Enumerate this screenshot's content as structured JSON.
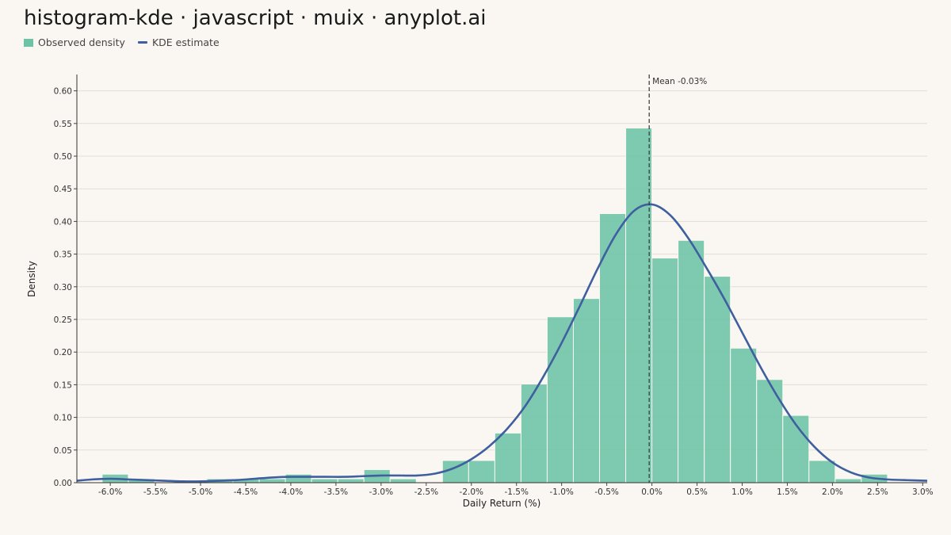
{
  "title": "histogram-kde · javascript · muix · anyplot.ai",
  "colors": {
    "bars": "#6cc4a6",
    "kde": "#3f5f9f",
    "background": "#faf7f2",
    "grid": "#e2ddd5"
  },
  "legend": [
    {
      "label": "Observed density",
      "kind": "bar"
    },
    {
      "label": "KDE estimate",
      "kind": "line"
    }
  ],
  "chart_data": {
    "type": "bar",
    "xlabel": "Daily Return (%)",
    "ylabel": "Density",
    "xlim": [
      -6.37,
      3.05
    ],
    "ylim": [
      0,
      0.625
    ],
    "grid": true,
    "legend_position": "top-left",
    "x_ticks": [
      -6.0,
      -5.5,
      -5.0,
      -4.5,
      -4.0,
      -3.5,
      -3.0,
      -2.5,
      -2.0,
      -1.5,
      -1.0,
      -0.5,
      0.0,
      0.5,
      1.0,
      1.5,
      2.0,
      2.5,
      3.0
    ],
    "x_tick_labels": [
      "-6.0%",
      "-5.5%",
      "-5.0%",
      "-4.5%",
      "-4.0%",
      "-3.5%",
      "-3.0%",
      "-2.5%",
      "-2.0%",
      "-1.5%",
      "-1.0%",
      "-0.5%",
      "0.0%",
      "0.5%",
      "1.0%",
      "1.5%",
      "2.0%",
      "2.5%",
      "3.0%"
    ],
    "y_ticks": [
      0.0,
      0.05,
      0.1,
      0.15,
      0.2,
      0.25,
      0.3,
      0.35,
      0.4,
      0.45,
      0.5,
      0.55,
      0.6
    ],
    "y_tick_labels": [
      "0.00",
      "0.05",
      "0.10",
      "0.15",
      "0.20",
      "0.25",
      "0.30",
      "0.35",
      "0.40",
      "0.45",
      "0.50",
      "0.55",
      "0.60"
    ],
    "histogram": {
      "bin_start": -6.09,
      "bin_width": 0.29,
      "values": [
        0.013,
        0.006,
        0,
        0,
        0.006,
        0.006,
        0.006,
        0.013,
        0.006,
        0.006,
        0.02,
        0.006,
        0,
        0.034,
        0.034,
        0.076,
        0.151,
        0.254,
        0.282,
        0.412,
        0.543,
        0.344,
        0.371,
        0.316,
        0.206,
        0.158,
        0.103,
        0.034,
        0.006,
        0.013
      ]
    },
    "kde": {
      "x": [
        -6.37,
        -6.2,
        -6.0,
        -5.8,
        -5.6,
        -5.4,
        -5.2,
        -5.0,
        -4.8,
        -4.6,
        -4.4,
        -4.2,
        -4.0,
        -3.8,
        -3.6,
        -3.4,
        -3.2,
        -3.0,
        -2.8,
        -2.6,
        -2.4,
        -2.2,
        -2.0,
        -1.8,
        -1.6,
        -1.4,
        -1.2,
        -1.0,
        -0.8,
        -0.6,
        -0.4,
        -0.2,
        0.0,
        0.2,
        0.4,
        0.6,
        0.8,
        1.0,
        1.2,
        1.4,
        1.6,
        1.8,
        2.0,
        2.2,
        2.4,
        2.6,
        2.8,
        3.05
      ],
      "y": [
        0.003,
        0.005,
        0.006,
        0.005,
        0.004,
        0.003,
        0.002,
        0.002,
        0.003,
        0.004,
        0.006,
        0.008,
        0.009,
        0.009,
        0.009,
        0.009,
        0.01,
        0.011,
        0.011,
        0.011,
        0.014,
        0.022,
        0.036,
        0.056,
        0.083,
        0.118,
        0.163,
        0.214,
        0.27,
        0.328,
        0.38,
        0.416,
        0.426,
        0.41,
        0.375,
        0.33,
        0.282,
        0.23,
        0.178,
        0.13,
        0.088,
        0.055,
        0.031,
        0.016,
        0.008,
        0.005,
        0.004,
        0.003
      ]
    },
    "mean_line": {
      "x": -0.03,
      "label": "Mean -0.03%"
    }
  }
}
